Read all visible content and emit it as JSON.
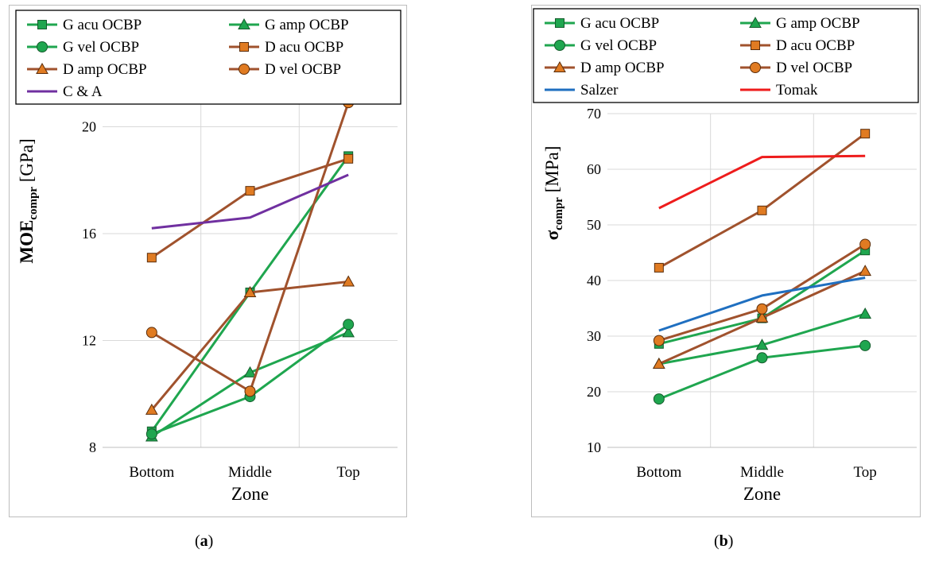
{
  "colors": {
    "green": "#1fa64f",
    "brown": "#a0522d",
    "purple": "#7030a0",
    "blue": "#1f6fc0",
    "red": "#ee1c1c",
    "orange_fill": "#e07b22",
    "green_fill": "#1fa64f",
    "grid": "#d9d9d9"
  },
  "chart_data": [
    {
      "type": "line",
      "panel": "a",
      "caption_letter": "a",
      "categories": [
        "Bottom",
        "Middle",
        "Top"
      ],
      "xlabel": "Zone",
      "ylabel_main": "MOE",
      "ylabel_sub": "compr",
      "ylabel_unit": " [GPa]",
      "ylim": [
        8,
        21.5
      ],
      "yticks": [
        8,
        12,
        16,
        20
      ],
      "series": [
        {
          "name": "G acu OCBP",
          "color": "green",
          "marker": "square",
          "values": [
            8.6,
            13.8,
            18.9
          ]
        },
        {
          "name": "G amp OCBP",
          "color": "green",
          "marker": "triangle",
          "values": [
            8.4,
            10.8,
            12.3
          ]
        },
        {
          "name": "G vel OCBP",
          "color": "green",
          "marker": "circle",
          "values": [
            8.5,
            9.9,
            12.6
          ]
        },
        {
          "name": "D acu OCBP",
          "color": "brown",
          "marker": "square",
          "values": [
            15.1,
            17.6,
            18.8
          ]
        },
        {
          "name": "D amp OCBP",
          "color": "brown",
          "marker": "triangle",
          "values": [
            9.4,
            13.8,
            14.2
          ]
        },
        {
          "name": "D vel OCBP",
          "color": "brown",
          "marker": "circle",
          "values": [
            12.3,
            10.1,
            20.9
          ]
        },
        {
          "name": "C & A",
          "color": "purple",
          "marker": "none",
          "values": [
            16.2,
            16.6,
            18.2
          ]
        }
      ]
    },
    {
      "type": "line",
      "panel": "b",
      "caption_letter": "b",
      "categories": [
        "Bottom",
        "Middle",
        "Top"
      ],
      "xlabel": "Zone",
      "ylabel_main": "σ",
      "ylabel_sub": "compr",
      "ylabel_unit": " [MPa]",
      "ylim": [
        10,
        70
      ],
      "yticks": [
        10,
        20,
        30,
        40,
        50,
        60,
        70
      ],
      "series": [
        {
          "name": "G acu OCBP",
          "color": "green",
          "marker": "square",
          "values": [
            28.6,
            33.2,
            45.4
          ]
        },
        {
          "name": "G amp OCBP",
          "color": "green",
          "marker": "triangle",
          "values": [
            25.0,
            28.4,
            34.0
          ]
        },
        {
          "name": "G vel OCBP",
          "color": "green",
          "marker": "circle",
          "values": [
            18.7,
            26.1,
            28.3
          ]
        },
        {
          "name": "D acu OCBP",
          "color": "brown",
          "marker": "square",
          "values": [
            42.3,
            52.6,
            66.4
          ]
        },
        {
          "name": "D amp OCBP",
          "color": "brown",
          "marker": "triangle",
          "values": [
            25.0,
            33.3,
            41.7
          ]
        },
        {
          "name": "D vel OCBP",
          "color": "brown",
          "marker": "circle",
          "values": [
            29.2,
            34.9,
            46.5
          ]
        },
        {
          "name": "Salzer",
          "color": "blue",
          "marker": "none",
          "values": [
            31.0,
            37.3,
            40.5
          ]
        },
        {
          "name": "Tomak",
          "color": "red",
          "marker": "none",
          "values": [
            53.0,
            62.2,
            62.4
          ]
        }
      ]
    }
  ]
}
